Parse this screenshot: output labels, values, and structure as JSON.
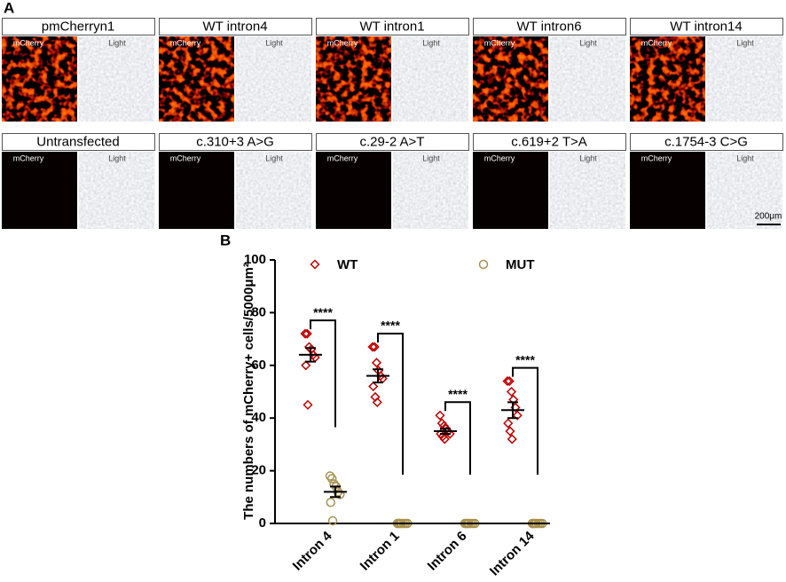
{
  "panel_a": {
    "label": "A",
    "rows": [
      [
        {
          "title": "pmCherryn1",
          "left": "mCherry",
          "right": "Light"
        },
        {
          "title": "WT intron4",
          "left": "mCherry",
          "right": "Light"
        },
        {
          "title": "WT intron1",
          "left": "mCherry",
          "right": "Light"
        },
        {
          "title": "WT intron6",
          "left": "mCherry",
          "right": "Light"
        },
        {
          "title": "WT intron14",
          "left": "mCherry",
          "right": "Light"
        }
      ],
      [
        {
          "title": "Untransfected",
          "left": "mCherry",
          "right": "Light"
        },
        {
          "title": "c.310+3 A>G",
          "left": "mCherry",
          "right": "Light"
        },
        {
          "title": "c.29-2 A>T",
          "left": "mCherry",
          "right": "Light"
        },
        {
          "title": "c.619+2 T>A",
          "left": "mCherry",
          "right": "Light"
        },
        {
          "title": "c.1754-3 C>G",
          "left": "mCherry",
          "right": "Light"
        }
      ]
    ],
    "scale_bar": "200μm"
  },
  "chart_data": {
    "type": "dot",
    "panel_label": "B",
    "y_label": "The numbers of mCherry+ cells/5000μm²",
    "categories": [
      "Intron 4",
      "Intron 1",
      "Intron 6",
      "Intron 14"
    ],
    "series": [
      {
        "name": "WT",
        "color": "#c00000",
        "marker": "diamond",
        "values": [
          [
            72,
            72,
            67,
            66,
            64,
            63,
            60,
            45
          ],
          [
            67,
            67,
            61,
            58,
            56,
            55,
            52,
            48,
            46
          ],
          [
            41,
            38,
            37,
            36,
            35,
            34,
            34,
            33,
            32
          ],
          [
            54,
            54,
            50,
            47,
            44,
            41,
            38,
            35,
            32
          ]
        ],
        "means": [
          64,
          56,
          35,
          43
        ],
        "errors": [
          2.6,
          2.5,
          1,
          3
        ]
      },
      {
        "name": "MUT",
        "color": "#a8904f",
        "marker": "circle",
        "values": [
          [
            18,
            17,
            15,
            14,
            12,
            11,
            8,
            1
          ],
          [
            0,
            0,
            0,
            0,
            0,
            0,
            0,
            0
          ],
          [
            0,
            0,
            0,
            0,
            0,
            0,
            0,
            0
          ],
          [
            0,
            0,
            0,
            0,
            0,
            0,
            0,
            0
          ]
        ],
        "means": [
          12,
          0,
          0,
          0
        ],
        "errors": [
          2,
          0,
          0,
          0
        ]
      }
    ],
    "annotations": [
      "****",
      "****",
      "****",
      "****"
    ],
    "ylim": [
      0,
      100
    ],
    "yticks": [
      0,
      20,
      40,
      60,
      80,
      100
    ],
    "legend": "top"
  }
}
